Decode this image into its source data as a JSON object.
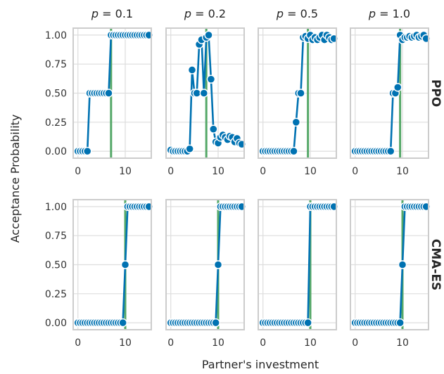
{
  "chart_data": {
    "type": "line",
    "ylabel": "Acceptance Probability",
    "xlabel": "Partner's investment",
    "columns": [
      {
        "label": "p = 0.1",
        "p": "0.1"
      },
      {
        "label": "p = 0.2",
        "p": "0.2"
      },
      {
        "label": "p = 0.5",
        "p": "0.5"
      },
      {
        "label": "p = 1.0",
        "p": "1.0"
      }
    ],
    "rows": [
      "PPO",
      "CMA-ES"
    ],
    "xlim": [
      -1,
      15.5
    ],
    "ylim": [
      -0.06,
      1.06
    ],
    "x_ticks": [
      0,
      10
    ],
    "y_ticks": [
      0.0,
      0.25,
      0.5,
      0.75,
      1.0
    ],
    "x_tick_labels": [
      "0",
      "10"
    ],
    "y_tick_labels": [
      "0.00",
      "0.25",
      "0.50",
      "0.75",
      "1.00"
    ],
    "grid": true,
    "colors": {
      "series": "#0072b2",
      "threshold": "#55a868",
      "marker_edge": "#ffffff"
    },
    "panels": [
      {
        "row": "PPO",
        "col": "p = 0.1",
        "threshold_x": 7.0,
        "x": [
          0,
          0.5,
          1,
          1.5,
          2,
          2.5,
          3,
          3.5,
          4,
          4.5,
          5,
          5.5,
          6,
          6.5,
          7,
          7.5,
          8,
          8.5,
          9,
          9.5,
          10,
          10.5,
          11,
          11.5,
          12,
          12.5,
          13,
          13.5,
          14,
          14.5,
          15
        ],
        "y": [
          0,
          0,
          0,
          0,
          0,
          0.5,
          0.5,
          0.5,
          0.5,
          0.5,
          0.5,
          0.5,
          0.5,
          0.5,
          1,
          1,
          1,
          1,
          1,
          1,
          1,
          1,
          1,
          1,
          1,
          1,
          1,
          1,
          1,
          1,
          1
        ]
      },
      {
        "row": "PPO",
        "col": "p = 0.2",
        "threshold_x": 7.5,
        "x": [
          0,
          0.5,
          1,
          1.5,
          2,
          2.5,
          3,
          3.5,
          4,
          4.5,
          5,
          5.5,
          6,
          6.5,
          7,
          7.5,
          8,
          8.5,
          9,
          9.5,
          10,
          10.5,
          11,
          11.5,
          12,
          12.5,
          13,
          13.5,
          14,
          14.5,
          15
        ],
        "y": [
          0.01,
          0,
          0,
          0,
          0,
          0,
          0,
          0,
          0.02,
          0.7,
          0.5,
          0.5,
          0.92,
          0.96,
          0.5,
          0.98,
          1,
          0.62,
          0.19,
          0.08,
          0.07,
          0.12,
          0.14,
          0.12,
          0.1,
          0.13,
          0.12,
          0.08,
          0.11,
          0.07,
          0.06
        ]
      },
      {
        "row": "PPO",
        "col": "p = 0.5",
        "threshold_x": 9.5,
        "x": [
          0,
          0.5,
          1,
          1.5,
          2,
          2.5,
          3,
          3.5,
          4,
          4.5,
          5,
          5.5,
          6,
          6.5,
          7,
          7.5,
          8,
          8.5,
          9,
          9.5,
          10,
          10.5,
          11,
          11.5,
          12,
          12.5,
          13,
          13.5,
          14,
          14.5,
          15
        ],
        "y": [
          0,
          0,
          0,
          0,
          0,
          0,
          0,
          0,
          0,
          0,
          0,
          0,
          0,
          0,
          0.25,
          0.5,
          0.5,
          0.98,
          0.99,
          0.97,
          1,
          0.96,
          0.98,
          0.96,
          0.98,
          1,
          0.96,
          1,
          0.98,
          0.96,
          0.97
        ]
      },
      {
        "row": "PPO",
        "col": "p = 1.0",
        "threshold_x": 9.5,
        "x": [
          0,
          0.5,
          1,
          1.5,
          2,
          2.5,
          3,
          3.5,
          4,
          4.5,
          5,
          5.5,
          6,
          6.5,
          7,
          7.5,
          8,
          8.5,
          9,
          9.5,
          10,
          10.5,
          11,
          11.5,
          12,
          12.5,
          13,
          13.5,
          14,
          14.5,
          15
        ],
        "y": [
          0,
          0,
          0,
          0,
          0,
          0,
          0,
          0,
          0,
          0,
          0,
          0,
          0,
          0,
          0,
          0,
          0.5,
          0.5,
          0.55,
          1,
          0.96,
          0.98,
          0.98,
          0.99,
          0.98,
          0.99,
          1,
          0.98,
          0.99,
          1,
          0.97
        ]
      },
      {
        "row": "CMA-ES",
        "col": "p = 0.1",
        "threshold_x": 10.0,
        "x": [
          0,
          0.5,
          1,
          1.5,
          2,
          2.5,
          3,
          3.5,
          4,
          4.5,
          5,
          5.5,
          6,
          6.5,
          7,
          7.5,
          8,
          8.5,
          9,
          9.5,
          10,
          10.5,
          11,
          11.5,
          12,
          12.5,
          13,
          13.5,
          14,
          14.5,
          15
        ],
        "y": [
          0,
          0,
          0,
          0,
          0,
          0,
          0,
          0,
          0,
          0,
          0,
          0,
          0,
          0,
          0,
          0,
          0,
          0,
          0,
          0,
          0.5,
          1,
          1,
          1,
          1,
          1,
          1,
          1,
          1,
          1,
          1
        ]
      },
      {
        "row": "CMA-ES",
        "col": "p = 0.2",
        "threshold_x": 10.0,
        "x": [
          0,
          0.5,
          1,
          1.5,
          2,
          2.5,
          3,
          3.5,
          4,
          4.5,
          5,
          5.5,
          6,
          6.5,
          7,
          7.5,
          8,
          8.5,
          9,
          9.5,
          10,
          10.5,
          11,
          11.5,
          12,
          12.5,
          13,
          13.5,
          14,
          14.5,
          15
        ],
        "y": [
          0,
          0,
          0,
          0,
          0,
          0,
          0,
          0,
          0,
          0,
          0,
          0,
          0,
          0,
          0,
          0,
          0,
          0,
          0,
          0,
          0.5,
          1,
          1,
          1,
          1,
          1,
          1,
          1,
          1,
          1,
          1
        ]
      },
      {
        "row": "CMA-ES",
        "col": "p = 0.5",
        "threshold_x": 10.0,
        "x": [
          0,
          0.5,
          1,
          1.5,
          2,
          2.5,
          3,
          3.5,
          4,
          4.5,
          5,
          5.5,
          6,
          6.5,
          7,
          7.5,
          8,
          8.5,
          9,
          9.5,
          10,
          10.5,
          11,
          11.5,
          12,
          12.5,
          13,
          13.5,
          14,
          14.5,
          15
        ],
        "y": [
          0,
          0,
          0,
          0,
          0,
          0,
          0,
          0,
          0,
          0,
          0,
          0,
          0,
          0,
          0,
          0,
          0,
          0,
          0,
          0,
          1,
          1,
          1,
          1,
          1,
          1,
          1,
          1,
          1,
          1,
          1
        ]
      },
      {
        "row": "CMA-ES",
        "col": "p = 1.0",
        "threshold_x": 10.0,
        "x": [
          0,
          0.5,
          1,
          1.5,
          2,
          2.5,
          3,
          3.5,
          4,
          4.5,
          5,
          5.5,
          6,
          6.5,
          7,
          7.5,
          8,
          8.5,
          9,
          9.5,
          10,
          10.5,
          11,
          11.5,
          12,
          12.5,
          13,
          13.5,
          14,
          14.5,
          15
        ],
        "y": [
          0,
          0,
          0,
          0,
          0,
          0,
          0,
          0,
          0,
          0,
          0,
          0,
          0,
          0,
          0,
          0,
          0,
          0,
          0,
          0,
          0.5,
          1,
          1,
          1,
          1,
          1,
          1,
          1,
          1,
          1,
          1
        ]
      }
    ]
  }
}
